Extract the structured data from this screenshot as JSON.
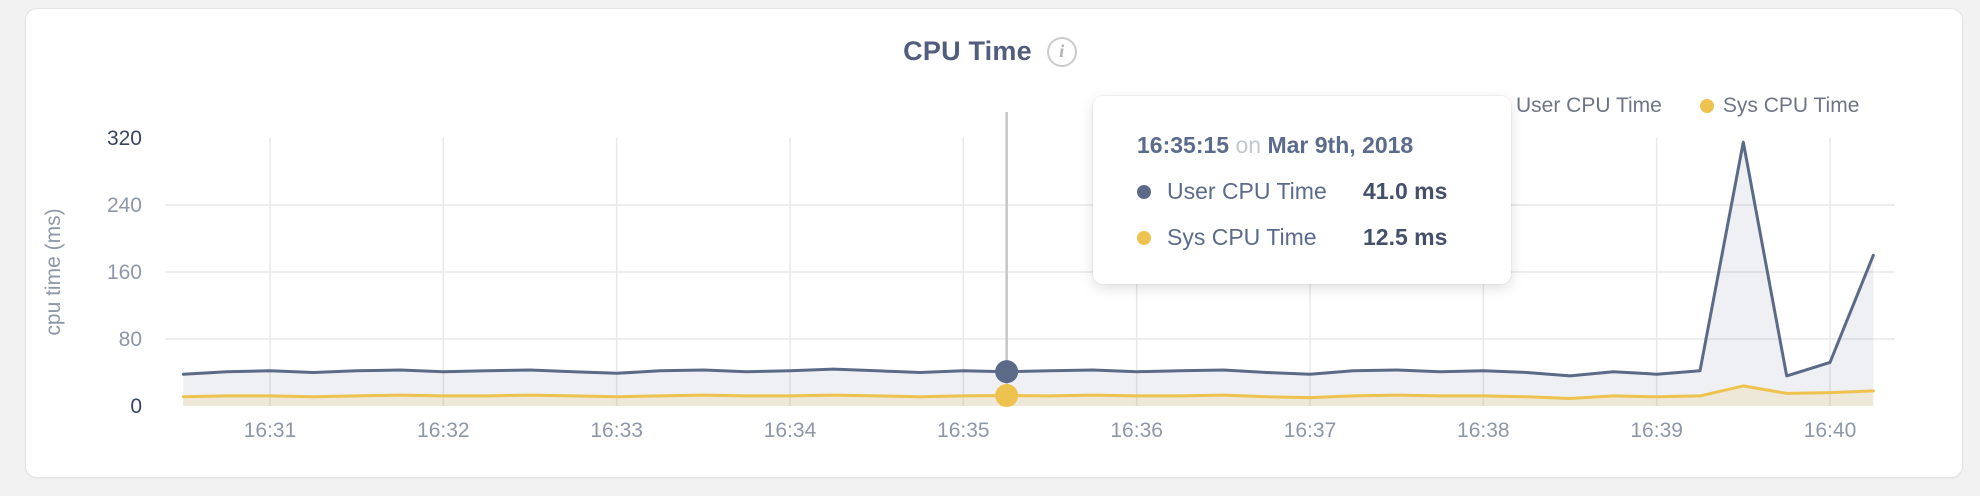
{
  "header": {
    "title": "CPU Time",
    "info_icon": "i"
  },
  "legend": [
    {
      "label": "User CPU Time",
      "color": "#5b6a87"
    },
    {
      "label": "Sys CPU Time",
      "color": "#eec24f"
    }
  ],
  "tooltip": {
    "time": "16:35:15",
    "connector": "on",
    "date": "Mar 9th, 2018",
    "rows": [
      {
        "label": "User CPU Time",
        "value": "41.0 ms",
        "color": "#5b6a87"
      },
      {
        "label": "Sys CPU Time",
        "value": "12.5 ms",
        "color": "#eec24f"
      }
    ]
  },
  "chart_data": {
    "type": "area",
    "title": "CPU Time",
    "ylabel": "cpu time (ms)",
    "ylim": [
      0,
      320
    ],
    "yticks": [
      0,
      80,
      160,
      240,
      320
    ],
    "grid": true,
    "legend_position": "top-right",
    "xticks": [
      "16:31",
      "16:32",
      "16:33",
      "16:34",
      "16:35",
      "16:36",
      "16:37",
      "16:38",
      "16:39",
      "16:40"
    ],
    "x_step_seconds": 15,
    "x_times": [
      "16:30:30",
      "16:30:45",
      "16:31:00",
      "16:31:15",
      "16:31:30",
      "16:31:45",
      "16:32:00",
      "16:32:15",
      "16:32:30",
      "16:32:45",
      "16:33:00",
      "16:33:15",
      "16:33:30",
      "16:33:45",
      "16:34:00",
      "16:34:15",
      "16:34:30",
      "16:34:45",
      "16:35:00",
      "16:35:15",
      "16:35:30",
      "16:35:45",
      "16:36:00",
      "16:36:15",
      "16:36:30",
      "16:36:45",
      "16:37:00",
      "16:37:15",
      "16:37:30",
      "16:37:45",
      "16:38:00",
      "16:38:15",
      "16:38:30",
      "16:38:45",
      "16:39:00",
      "16:39:15",
      "16:39:30",
      "16:39:45",
      "16:40:00",
      "16:40:15"
    ],
    "series": [
      {
        "name": "User CPU Time",
        "color": "#5b6a87",
        "fill": "rgba(99,112,141,0.10)",
        "values": [
          38,
          41,
          42,
          40,
          42,
          43,
          41,
          42,
          43,
          41,
          39,
          42,
          43,
          41,
          42,
          44,
          42,
          40,
          42,
          41,
          42,
          43,
          41,
          42,
          43,
          40,
          38,
          42,
          43,
          41,
          42,
          40,
          36,
          41,
          38,
          42,
          315,
          36,
          52,
          180
        ]
      },
      {
        "name": "Sys CPU Time",
        "color": "#eec24f",
        "fill": "rgba(238,194,79,0.16)",
        "values": [
          11,
          12,
          12,
          11,
          12,
          13,
          12,
          12,
          13,
          12,
          11,
          12,
          13,
          12,
          12,
          13,
          12,
          11,
          12,
          12.5,
          12,
          13,
          12,
          12,
          13,
          11,
          10,
          12,
          13,
          12,
          12,
          11,
          9,
          12,
          11,
          12,
          24,
          15,
          16,
          18
        ]
      }
    ],
    "hover": {
      "time": "16:35:15",
      "index": 19,
      "values": [
        41.0,
        12.5
      ]
    }
  }
}
